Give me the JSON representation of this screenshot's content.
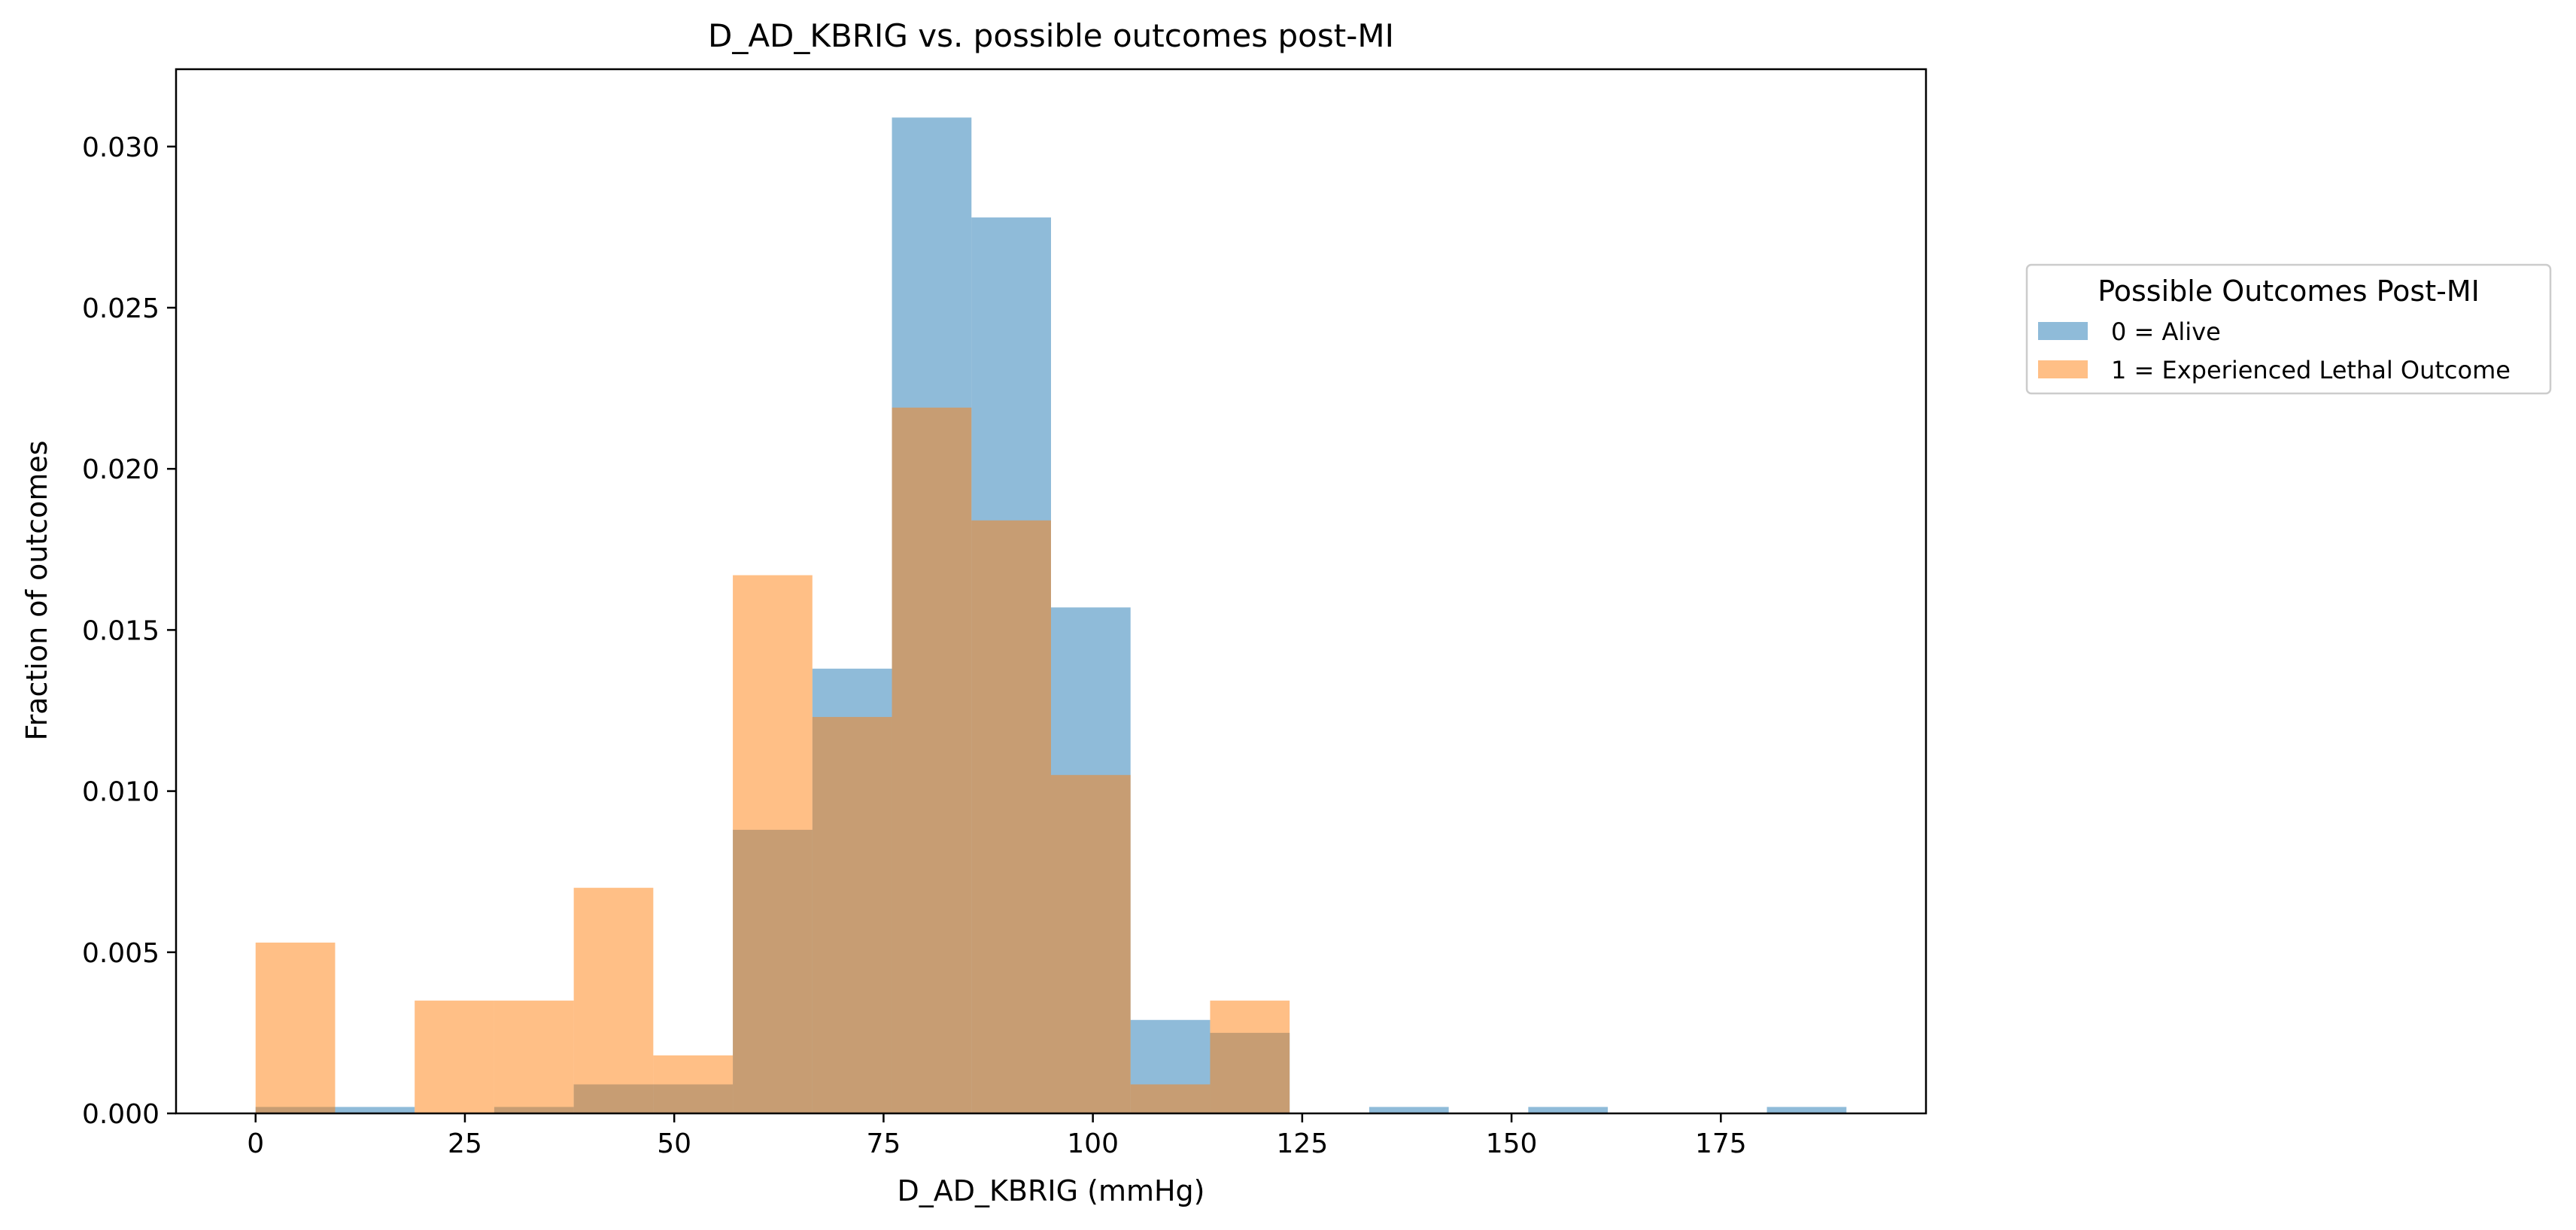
{
  "chart_data": {
    "type": "bar",
    "subtype": "overlapping histogram",
    "title": "D_AD_KBRIG vs. possible outcomes post-MI",
    "xlabel": "D_AD_KBRIG (mmHg)",
    "ylabel": "Fraction of outcomes",
    "xlim": [
      -9.5,
      199.5
    ],
    "ylim": [
      0,
      0.0324
    ],
    "xticks": [
      0,
      25,
      50,
      75,
      100,
      125,
      150,
      175
    ],
    "yticks": [
      0.0,
      0.005,
      0.01,
      0.015,
      0.02,
      0.025,
      0.03
    ],
    "ytick_labels": [
      "0.000",
      "0.005",
      "0.010",
      "0.015",
      "0.020",
      "0.025",
      "0.030"
    ],
    "bin_edges": [
      0,
      9.5,
      19,
      28.5,
      38,
      47.5,
      57,
      66.5,
      76,
      85.5,
      95,
      104.5,
      114,
      123.5,
      133,
      142.5,
      152,
      161.5,
      171,
      180.5,
      190
    ],
    "series": [
      {
        "name": "0 = Alive",
        "color": "#1f77b4",
        "opacity": 0.5,
        "values": [
          0.0002,
          0.0002,
          0.0,
          0.0002,
          0.0009,
          0.0009,
          0.0088,
          0.0138,
          0.0309,
          0.0278,
          0.0157,
          0.0029,
          0.0025,
          0.0,
          0.0002,
          0.0,
          0.0002,
          0.0,
          0.0,
          0.0002
        ]
      },
      {
        "name": "1 = Experienced Lethal Outcome",
        "color": "#ff7f0e",
        "opacity": 0.5,
        "values": [
          0.0053,
          0.0,
          0.0035,
          0.0035,
          0.007,
          0.0018,
          0.0167,
          0.0123,
          0.0219,
          0.0184,
          0.0105,
          0.0009,
          0.0035,
          0.0,
          0.0,
          0.0,
          0.0,
          0.0,
          0.0,
          0.0
        ]
      }
    ],
    "legend": {
      "title": "Possible Outcomes Post-MI",
      "placement": "outside right, upper"
    },
    "grid": false
  }
}
